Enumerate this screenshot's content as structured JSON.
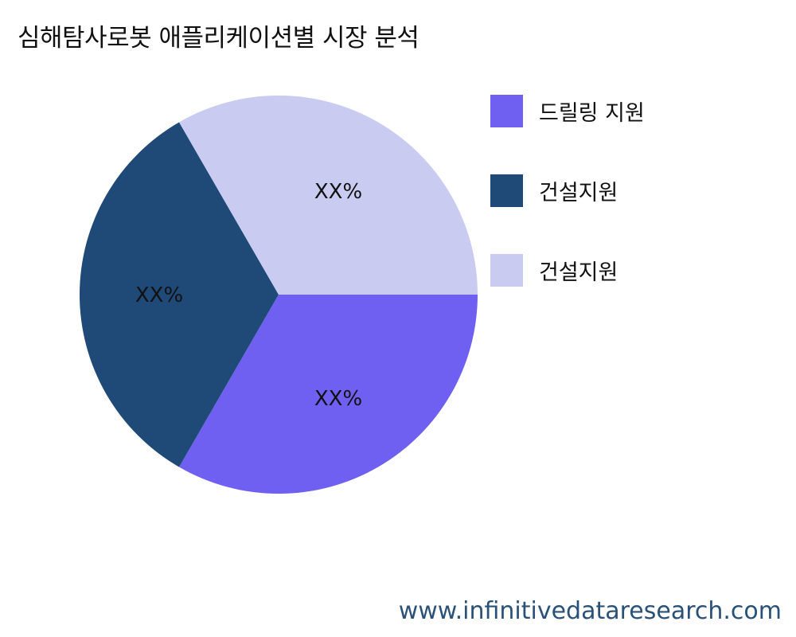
{
  "title": "심해탐사로봇 애플리케이션별 시장 분석",
  "watermark": "www.infinitivedataresearch.com",
  "chart_data": {
    "type": "pie",
    "title": "심해탐사로봇 애플리케이션별 시장 분석",
    "slices": [
      {
        "name": "드릴링 지원",
        "value": 33.33,
        "label": "XX%",
        "color": "#6f60f2"
      },
      {
        "name": "건설지원",
        "value": 33.33,
        "label": "XX%",
        "color": "#1f4a78"
      },
      {
        "name": "건설지원",
        "value": 33.33,
        "label": "XX%",
        "color": "#c9cbf1"
      }
    ],
    "start_angle_deg": 0,
    "direction": "clockwise",
    "legend_position": "right"
  }
}
